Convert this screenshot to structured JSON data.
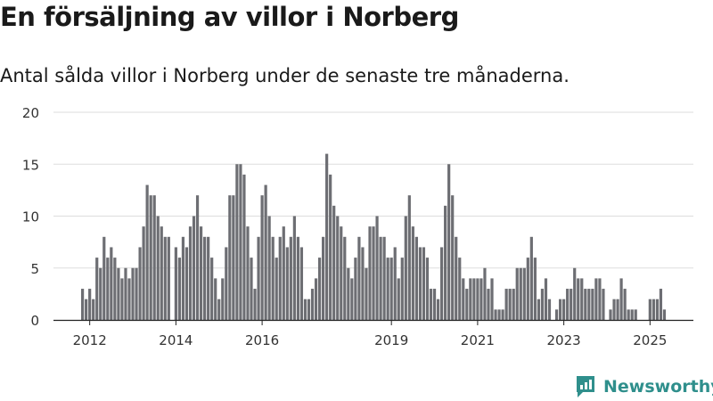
{
  "title": "En försäljning av villor i Norberg",
  "subtitle": "Antal sålda villor i Norberg under de senaste tre månaderna.",
  "brand": {
    "name": "Newsworthy",
    "logo_icon": "newsworthy-logo-icon"
  },
  "colors": {
    "bar": "#6d6e73",
    "highlight": "#1a9a9a",
    "grid": "#dddddd",
    "axis": "#222222",
    "brand": "#2f8f8c"
  },
  "chart_data": {
    "type": "bar",
    "title": "",
    "xlabel": "",
    "ylabel": "",
    "ylim": [
      0,
      20
    ],
    "yticks": [
      "0",
      "5",
      "10",
      "15",
      "20"
    ],
    "xticks": [
      {
        "label": "2012",
        "index": 2
      },
      {
        "label": "2014",
        "index": 26
      },
      {
        "label": "2016",
        "index": 50
      },
      {
        "label": "2019",
        "index": 86
      },
      {
        "label": "2021",
        "index": 110
      },
      {
        "label": "2023",
        "index": 134
      },
      {
        "label": "2025",
        "index": 158
      }
    ],
    "grid": true,
    "highlight_index": 163,
    "highlight_label": "1",
    "values": [
      3,
      2,
      3,
      2,
      6,
      5,
      8,
      6,
      7,
      6,
      5,
      4,
      5,
      4,
      5,
      5,
      7,
      9,
      13,
      12,
      12,
      10,
      9,
      8,
      8,
      0,
      7,
      6,
      8,
      7,
      9,
      10,
      12,
      9,
      8,
      8,
      6,
      4,
      2,
      4,
      7,
      12,
      12,
      15,
      15,
      14,
      9,
      6,
      3,
      8,
      12,
      13,
      10,
      8,
      6,
      8,
      9,
      7,
      8,
      10,
      8,
      7,
      2,
      2,
      3,
      4,
      6,
      8,
      16,
      14,
      11,
      10,
      9,
      8,
      5,
      4,
      6,
      8,
      7,
      5,
      9,
      9,
      10,
      8,
      8,
      6,
      6,
      7,
      4,
      6,
      10,
      12,
      9,
      8,
      7,
      7,
      6,
      3,
      3,
      2,
      7,
      11,
      15,
      12,
      8,
      6,
      4,
      3,
      4,
      4,
      4,
      4,
      5,
      3,
      4,
      1,
      1,
      1,
      3,
      3,
      3,
      5,
      5,
      5,
      6,
      8,
      6,
      2,
      3,
      4,
      2,
      0,
      1,
      2,
      2,
      3,
      3,
      5,
      4,
      4,
      3,
      3,
      3,
      4,
      4,
      3,
      0,
      1,
      2,
      2,
      4,
      3,
      1,
      1,
      1,
      0,
      0,
      0,
      2,
      2,
      2,
      3,
      1
    ]
  }
}
